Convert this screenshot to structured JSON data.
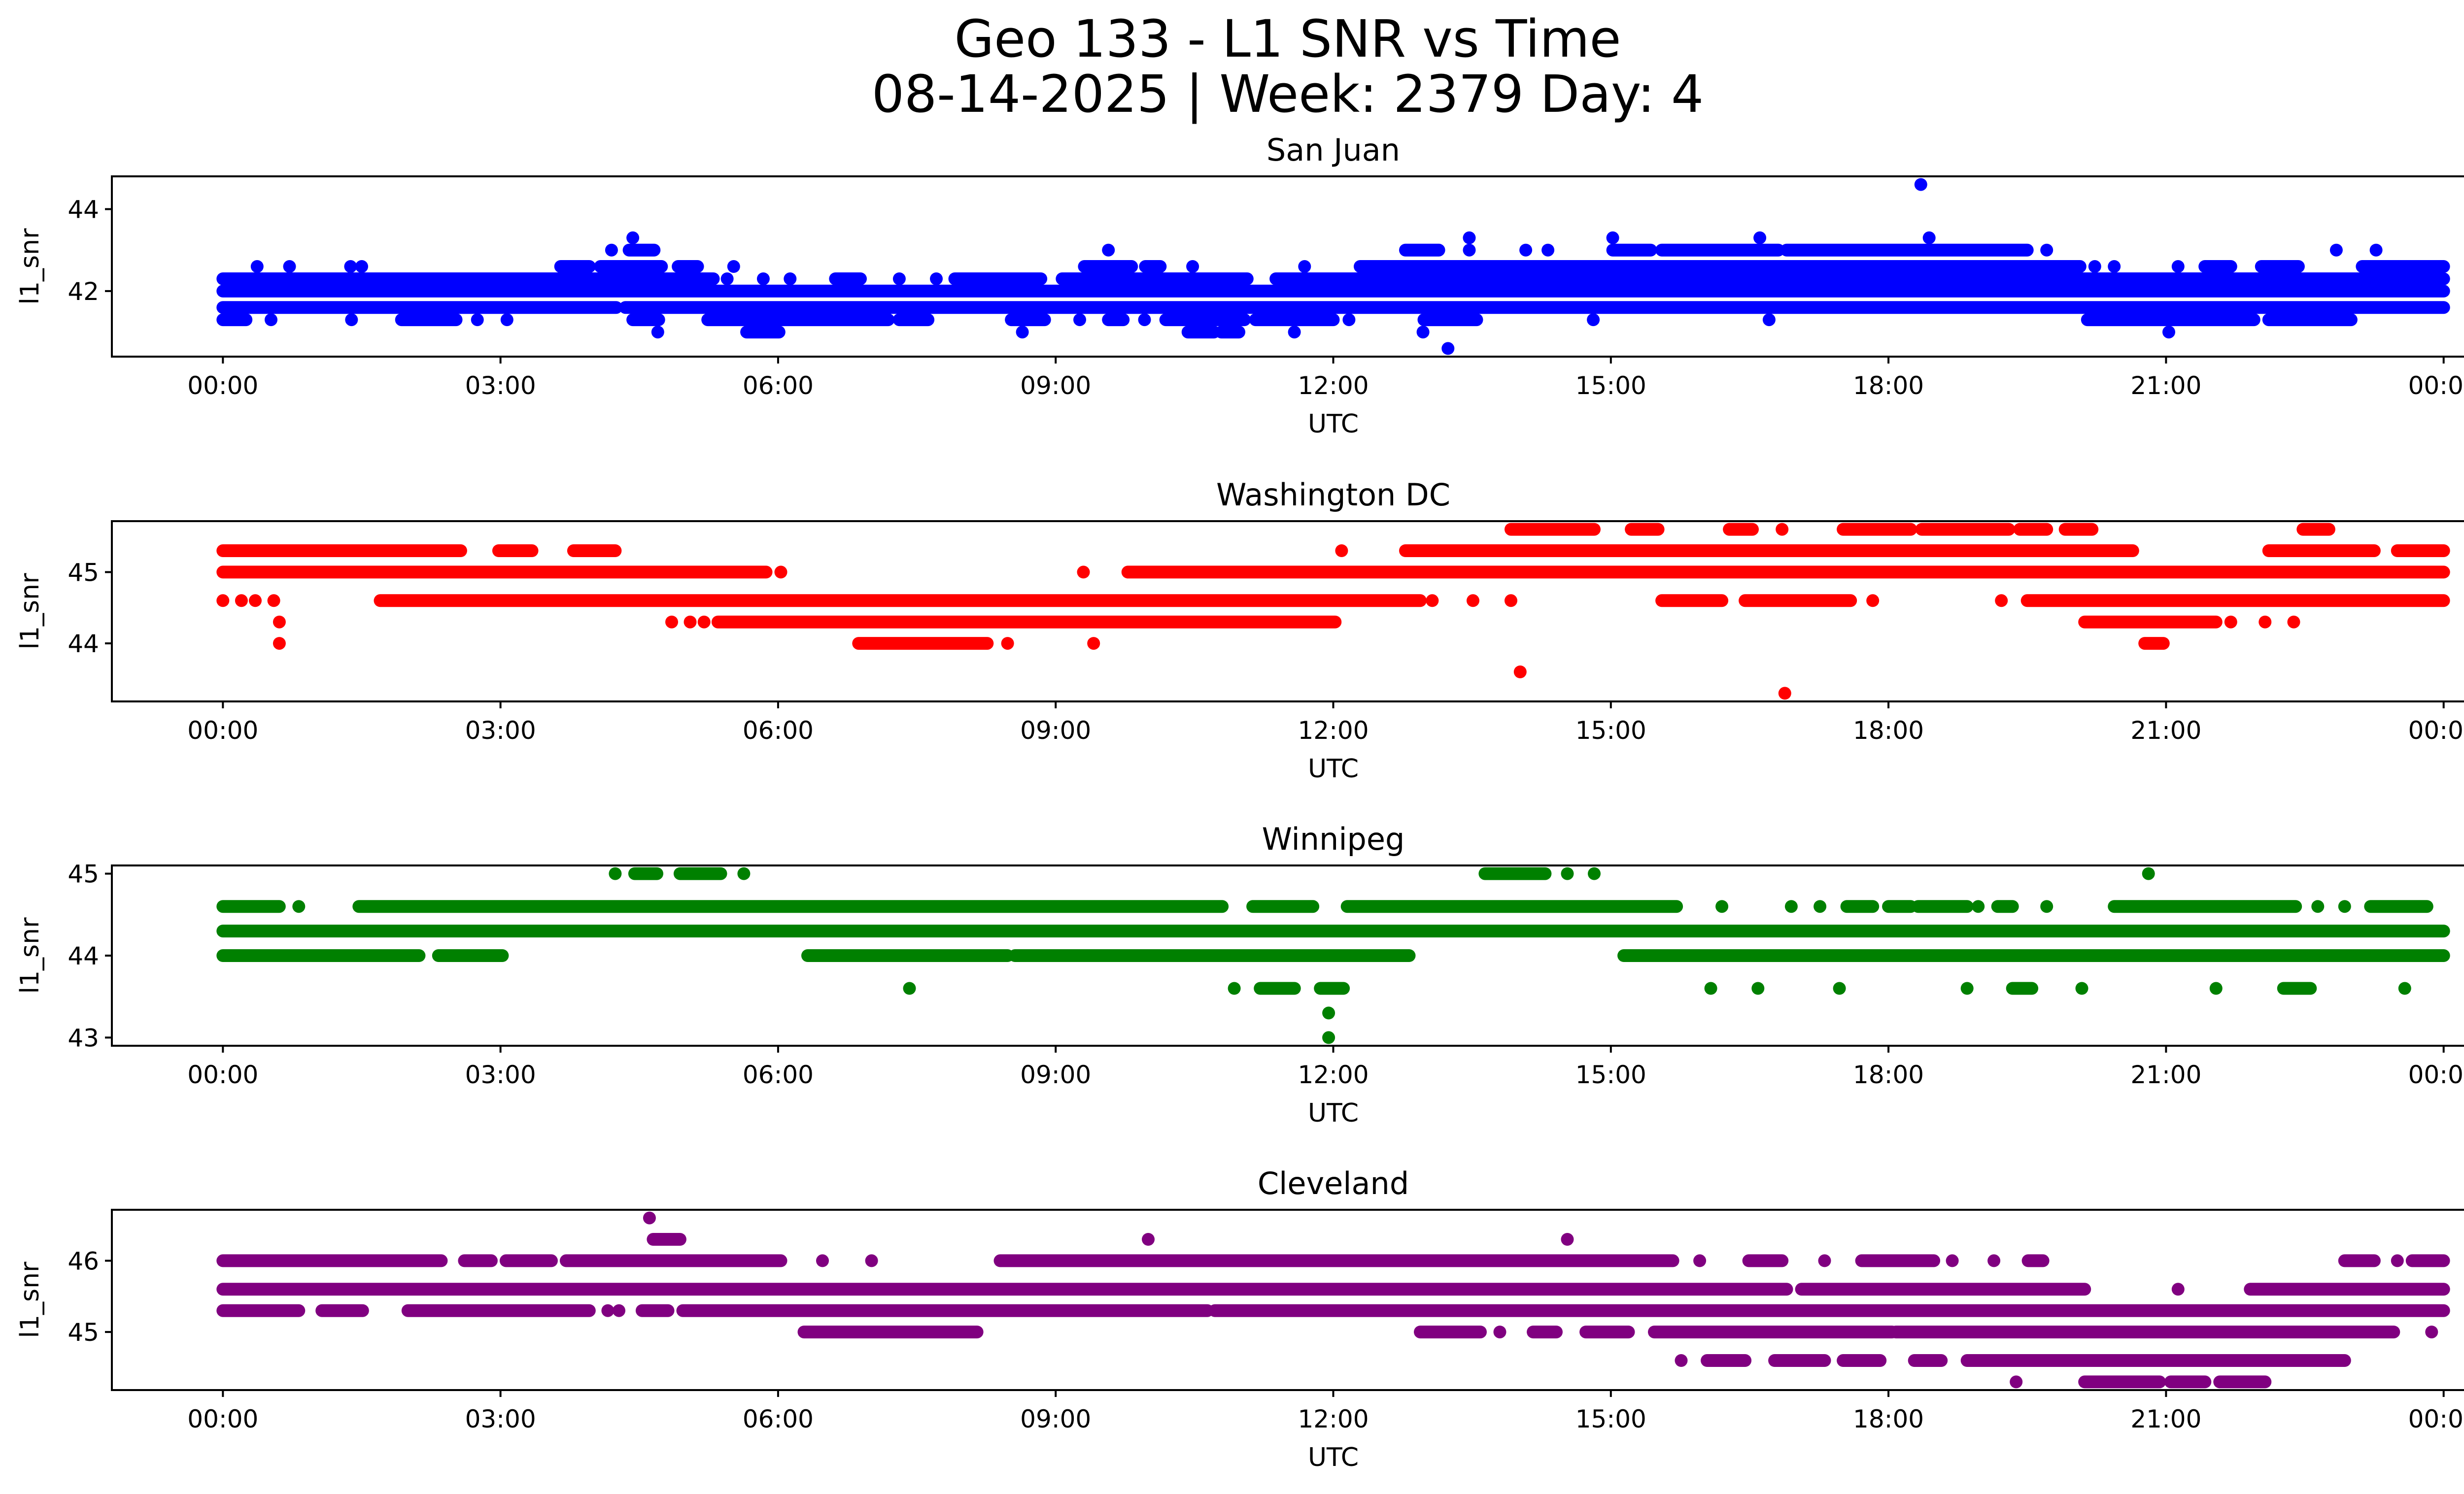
{
  "chart_data": {
    "type": "scatter",
    "title": "Geo 133 - L1 SNR vs Time",
    "subtitle": "08-14-2025 | Week: 2379 Day: 4",
    "xlabel": "UTC",
    "ylabel": "l1_snr",
    "x_unit": "hours UTC",
    "xlim": [
      -1.2,
      25.2
    ],
    "x_ticks": [
      0,
      3,
      6,
      9,
      12,
      15,
      18,
      21,
      24
    ],
    "x_tick_labels": [
      "00:00",
      "03:00",
      "06:00",
      "09:00",
      "12:00",
      "15:00",
      "18:00",
      "21:00",
      "00:00"
    ],
    "grid": false,
    "legend": "none",
    "panels": [
      {
        "name": "San Juan",
        "color": "#0000ff",
        "ylim": [
          40.4,
          44.8
        ],
        "y_ticks": [
          42,
          44
        ],
        "y_tick_labels": [
          "42",
          "44"
        ],
        "rows": [
          {
            "level": 44.6,
            "runs": [],
            "points": [
              18.35
            ]
          },
          {
            "level": 43.3,
            "runs": [],
            "points": [
              4.43,
              13.47,
              15.02,
              16.61,
              18.44
            ]
          },
          {
            "level": 43.0,
            "runs": [
              [
                4.39,
                4.66
              ],
              [
                12.78,
                13.14
              ],
              [
                15.02,
                15.43
              ],
              [
                15.55,
                16.81
              ],
              [
                16.9,
                19.5
              ]
            ],
            "points": [
              4.2,
              9.57,
              13.47,
              14.08,
              14.32,
              19.71,
              22.84,
              23.27
            ]
          },
          {
            "level": 42.6,
            "runs": [
              [
                3.65,
                3.96
              ],
              [
                4.08,
                4.74
              ],
              [
                4.92,
                5.13
              ],
              [
                9.31,
                9.82
              ],
              [
                9.97,
                10.13
              ],
              [
                12.29,
                20.07
              ],
              [
                21.42,
                21.7
              ],
              [
                22.03,
                22.43
              ],
              [
                23.12,
                24.0
              ]
            ],
            "points": [
              0.37,
              0.72,
              1.38,
              1.5,
              5.52,
              10.48,
              11.69,
              20.23,
              20.44,
              21.13
            ]
          },
          {
            "level": 42.3,
            "runs": [
              [
                0,
                5.3
              ],
              [
                6.62,
                6.89
              ],
              [
                7.91,
                8.84
              ],
              [
                9.07,
                11.07
              ],
              [
                11.38,
                24.0
              ]
            ],
            "points": [
              5.45,
              5.84,
              6.13,
              7.31,
              7.71
            ]
          },
          {
            "level": 42.0,
            "runs": [
              [
                0,
                24.0
              ]
            ],
            "points": []
          },
          {
            "level": 41.6,
            "runs": [
              [
                0,
                4.25
              ],
              [
                4.35,
                24.0
              ]
            ],
            "points": []
          },
          {
            "level": 41.3,
            "runs": [
              [
                0,
                0.25
              ],
              [
                1.93,
                2.52
              ],
              [
                4.43,
                4.71
              ],
              [
                5.24,
                7.19
              ],
              [
                7.31,
                7.62
              ],
              [
                8.52,
                8.88
              ],
              [
                9.57,
                9.73
              ],
              [
                10.19,
                11.04
              ],
              [
                11.16,
                12.0
              ],
              [
                12.98,
                13.55
              ],
              [
                20.15,
                21.95
              ],
              [
                22.11,
                23.0
              ]
            ],
            "points": [
              0.52,
              1.39,
              2.75,
              3.07,
              9.26,
              9.96,
              12.17,
              14.81,
              16.71
            ]
          },
          {
            "level": 41.0,
            "runs": [
              [
                5.66,
                6.01
              ],
              [
                10.43,
                10.71
              ],
              [
                10.79,
                10.98
              ]
            ],
            "points": [
              4.7,
              8.64,
              11.58,
              12.97,
              21.03
            ]
          },
          {
            "level": 40.6,
            "runs": [],
            "points": [
              13.24
            ]
          }
        ]
      },
      {
        "name": "Washington DC",
        "color": "#ff0000",
        "ylim": [
          43.185,
          45.715
        ],
        "y_ticks": [
          44,
          45
        ],
        "y_tick_labels": [
          "44",
          "45"
        ],
        "rows": [
          {
            "level": 45.6,
            "runs": [
              [
                13.92,
                14.82
              ],
              [
                15.22,
                15.51
              ],
              [
                16.28,
                16.53
              ],
              [
                17.51,
                18.24
              ],
              [
                18.36,
                19.3
              ],
              [
                19.42,
                19.71
              ],
              [
                19.91,
                20.2
              ],
              [
                22.48,
                22.76
              ]
            ],
            "points": [
              16.85
            ]
          },
          {
            "level": 45.3,
            "runs": [
              [
                0,
                2.57
              ],
              [
                2.98,
                3.34
              ],
              [
                3.79,
                4.24
              ],
              [
                12.78,
                20.64
              ],
              [
                22.11,
                23.25
              ],
              [
                23.5,
                24.0
              ]
            ],
            "points": [
              12.09
            ]
          },
          {
            "level": 45.0,
            "runs": [
              [
                0,
                5.87
              ],
              [
                9.78,
                24.0
              ]
            ],
            "points": [
              6.03,
              9.3
            ]
          },
          {
            "level": 44.6,
            "runs": [
              [
                1.7,
                12.94
              ],
              [
                15.55,
                16.2
              ],
              [
                16.45,
                17.59
              ],
              [
                19.5,
                24.0
              ]
            ],
            "points": [
              0.0,
              0.2,
              0.35,
              0.55,
              13.07,
              13.51,
              13.92,
              17.83,
              19.22
            ]
          },
          {
            "level": 44.3,
            "runs": [
              [
                5.35,
                12.02
              ],
              [
                20.12,
                21.54
              ]
            ],
            "points": [
              0.61,
              4.85,
              5.05,
              5.2,
              21.7,
              22.07,
              22.38
            ]
          },
          {
            "level": 44.0,
            "runs": [
              [
                6.87,
                8.26
              ],
              [
                20.77,
                20.97
              ]
            ],
            "points": [
              0.61,
              8.48,
              9.41
            ]
          },
          {
            "level": 43.6,
            "runs": [],
            "points": [
              14.02
            ]
          },
          {
            "level": 43.3,
            "runs": [],
            "points": [
              16.88
            ]
          }
        ]
      },
      {
        "name": "Winnipeg",
        "color": "#008000",
        "ylim": [
          42.9,
          45.1
        ],
        "y_ticks": [
          43,
          44,
          45
        ],
        "y_tick_labels": [
          "43",
          "44",
          "45"
        ],
        "rows": [
          {
            "level": 45.0,
            "runs": [
              [
                4.45,
                4.69
              ],
              [
                4.94,
                5.38
              ],
              [
                13.64,
                14.29
              ]
            ],
            "points": [
              4.24,
              5.63,
              14.53,
              14.82,
              20.81
            ]
          },
          {
            "level": 44.6,
            "runs": [
              [
                0,
                0.61
              ],
              [
                1.47,
                10.8
              ],
              [
                11.13,
                11.78
              ],
              [
                12.15,
                15.71
              ],
              [
                17.55,
                17.83
              ],
              [
                18.0,
                18.24
              ],
              [
                18.32,
                18.85
              ],
              [
                19.18,
                19.34
              ],
              [
                20.44,
                22.4
              ],
              [
                23.21,
                23.82
              ]
            ],
            "points": [
              0.82,
              16.2,
              16.95,
              17.26,
              18.97,
              19.71,
              22.64,
              22.93
            ]
          },
          {
            "level": 44.3,
            "runs": [
              [
                0,
                24.0
              ]
            ],
            "points": []
          },
          {
            "level": 44.0,
            "runs": [
              [
                0,
                2.12
              ],
              [
                2.33,
                3.02
              ],
              [
                6.32,
                8.48
              ],
              [
                8.56,
                12.82
              ],
              [
                15.14,
                24.0
              ]
            ],
            "points": []
          },
          {
            "level": 43.6,
            "runs": [
              [
                11.21,
                11.58
              ],
              [
                11.86,
                12.11
              ],
              [
                19.34,
                19.55
              ],
              [
                22.27,
                22.56
              ]
            ],
            "points": [
              7.42,
              10.93,
              16.08,
              16.59,
              17.47,
              18.85,
              20.09,
              21.54,
              23.58
            ]
          },
          {
            "level": 43.3,
            "runs": [],
            "points": [
              11.95
            ]
          },
          {
            "level": 43.0,
            "runs": [],
            "points": [
              11.95
            ]
          }
        ]
      },
      {
        "name": "Cleveland",
        "color": "#800080",
        "ylim": [
          44.185,
          46.715
        ],
        "y_ticks": [
          45,
          46
        ],
        "y_tick_labels": [
          "45",
          "46"
        ],
        "rows": [
          {
            "level": 46.6,
            "runs": [],
            "points": [
              4.61
            ]
          },
          {
            "level": 46.3,
            "runs": [
              [
                4.65,
                4.94
              ]
            ],
            "points": [
              10.0,
              14.53
            ]
          },
          {
            "level": 46.0,
            "runs": [
              [
                0,
                2.36
              ],
              [
                2.61,
                2.9
              ],
              [
                3.06,
                3.55
              ],
              [
                3.71,
                6.03
              ],
              [
                8.4,
                15.67
              ],
              [
                16.49,
                16.85
              ],
              [
                17.71,
                18.49
              ],
              [
                19.51,
                19.67
              ],
              [
                22.93,
                23.25
              ],
              [
                23.66,
                24.0
              ]
            ],
            "points": [
              6.48,
              7.01,
              15.96,
              17.31,
              18.69,
              19.14,
              23.5
            ]
          },
          {
            "level": 45.6,
            "runs": [
              [
                0,
                16.9
              ],
              [
                17.06,
                20.12
              ],
              [
                21.91,
                24.0
              ]
            ],
            "points": [
              21.13
            ]
          },
          {
            "level": 45.3,
            "runs": [
              [
                0,
                0.82
              ],
              [
                1.07,
                1.51
              ],
              [
                2.0,
                3.96
              ],
              [
                4.53,
                4.81
              ],
              [
                4.97,
                10.64
              ],
              [
                10.72,
                24.0
              ]
            ],
            "points": [
              4.16,
              4.28
            ]
          },
          {
            "level": 45.0,
            "runs": [
              [
                6.28,
                8.15
              ],
              [
                12.94,
                13.59
              ],
              [
                14.16,
                14.41
              ],
              [
                14.73,
                15.19
              ],
              [
                15.47,
                18.04
              ],
              [
                18.08,
                23.46
              ]
            ],
            "points": [
              13.8,
              23.87
            ]
          },
          {
            "level": 44.6,
            "runs": [
              [
                16.04,
                16.45
              ],
              [
                16.77,
                17.31
              ],
              [
                17.51,
                17.91
              ],
              [
                18.28,
                18.57
              ],
              [
                18.85,
                22.93
              ]
            ],
            "points": [
              15.76
            ]
          },
          {
            "level": 44.3,
            "runs": [
              [
                20.12,
                20.93
              ],
              [
                21.05,
                21.42
              ],
              [
                21.58,
                22.07
              ]
            ],
            "points": [
              19.38
            ]
          }
        ]
      }
    ]
  }
}
